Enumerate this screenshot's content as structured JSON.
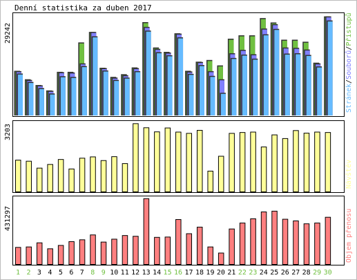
{
  "chart_data": [
    {
      "panel": "top",
      "type": "bar",
      "title": "Denní statistika za duben 2017",
      "ylabel": "29242",
      "ymax": 29242,
      "categories": [
        "1",
        "2",
        "3",
        "4",
        "5",
        "6",
        "7",
        "8",
        "9",
        "10",
        "11",
        "12",
        "13",
        "14",
        "15",
        "16",
        "17",
        "18",
        "19",
        "20",
        "21",
        "22",
        "23",
        "24",
        "25",
        "26",
        "27",
        "28",
        "29",
        "30"
      ],
      "highlight_days": [
        "1",
        "2",
        "8",
        "9",
        "15",
        "16",
        "22",
        "23",
        "29",
        "30"
      ],
      "legend_parts": [
        {
          "text": "Stránek",
          "color": "#66bbff"
        },
        {
          "text": "/",
          "color": "#000000"
        },
        {
          "text": "Souborů",
          "color": "#8080ff"
        },
        {
          "text": "/",
          "color": "#000000"
        },
        {
          "text": "Přístupů",
          "color": "#70c040"
        }
      ],
      "series": [
        {
          "name": "Přístupů",
          "color": "#70c040",
          "values": [
            12900,
            10400,
            8700,
            7100,
            12600,
            12600,
            21300,
            24400,
            13800,
            11100,
            11900,
            13900,
            27300,
            19800,
            18500,
            24000,
            12900,
            15600,
            16100,
            14500,
            22400,
            23400,
            23400,
            28500,
            27200,
            22100,
            22100,
            21500,
            15300,
            29000
          ]
        },
        {
          "name": "Souborů",
          "color": "#8080ff",
          "values": [
            12800,
            10200,
            8600,
            7000,
            12500,
            12400,
            15100,
            24400,
            13700,
            10900,
            11600,
            13700,
            25900,
            19400,
            18300,
            23900,
            12700,
            15500,
            12800,
            10400,
            18100,
            19100,
            17800,
            25400,
            26700,
            19800,
            19700,
            19200,
            15100,
            29000
          ]
        },
        {
          "name": "Stránek",
          "color": "#66bbff",
          "values": [
            12100,
            9600,
            7800,
            6200,
            11300,
            11100,
            14300,
            23100,
            13000,
            10200,
            10900,
            12800,
            24800,
            18400,
            17500,
            22800,
            12000,
            14600,
            11400,
            6400,
            16700,
            17700,
            16500,
            23700,
            25300,
            18000,
            18100,
            17600,
            14200,
            27800
          ]
        }
      ]
    },
    {
      "panel": "middle",
      "type": "bar",
      "ylabel": "3203",
      "ymax": 3203,
      "color": "#ffff99",
      "legend": "Návštěv",
      "categories": [
        "1",
        "2",
        "3",
        "4",
        "5",
        "6",
        "7",
        "8",
        "9",
        "10",
        "11",
        "12",
        "13",
        "14",
        "15",
        "16",
        "17",
        "18",
        "19",
        "20",
        "21",
        "22",
        "23",
        "24",
        "25",
        "26",
        "27",
        "28",
        "29",
        "30"
      ],
      "values": [
        1470,
        1420,
        1100,
        1270,
        1500,
        1060,
        1560,
        1620,
        1450,
        1630,
        1310,
        3160,
        2970,
        2780,
        2960,
        2770,
        2710,
        2850,
        960,
        1650,
        2710,
        2750,
        2770,
        2080,
        2640,
        2470,
        2840,
        2720,
        2770,
        2750
      ]
    },
    {
      "panel": "bottom",
      "type": "bar",
      "ylabel": "431297",
      "ymax": 431297,
      "color": "#ff8080",
      "legend": "Objem přenosu",
      "categories": [
        "1",
        "2",
        "3",
        "4",
        "5",
        "6",
        "7",
        "8",
        "9",
        "10",
        "11",
        "12",
        "13",
        "14",
        "15",
        "16",
        "17",
        "18",
        "19",
        "20",
        "21",
        "22",
        "23",
        "24",
        "25",
        "26",
        "27",
        "28",
        "29",
        "30"
      ],
      "values": [
        112000,
        115000,
        142000,
        103000,
        125000,
        150000,
        162000,
        194000,
        147000,
        166000,
        190000,
        185000,
        432000,
        178000,
        180000,
        295000,
        202000,
        245000,
        115000,
        75000,
        233000,
        272000,
        300000,
        345000,
        350000,
        297000,
        286000,
        267000,
        272000,
        310000
      ]
    }
  ]
}
